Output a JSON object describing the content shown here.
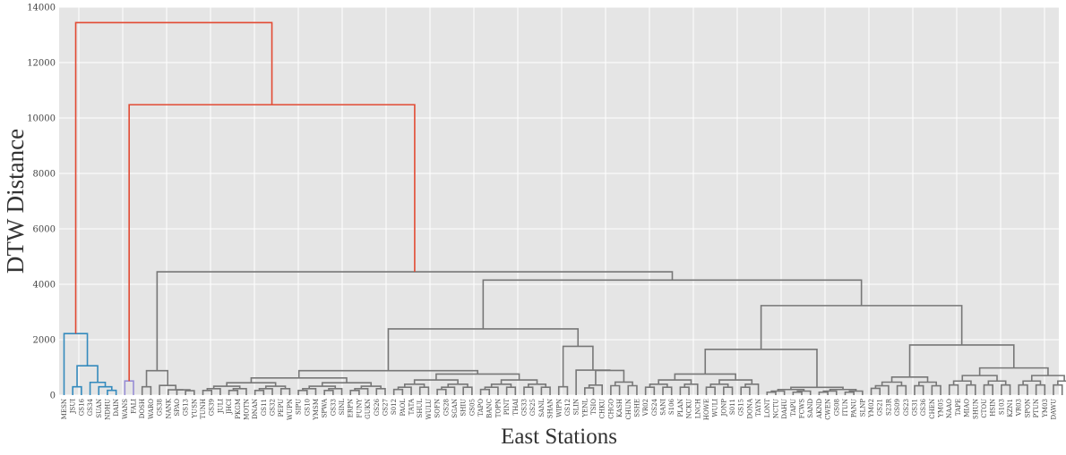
{
  "chart_data": {
    "type": "dendrogram",
    "xlabel": "East Stations",
    "ylabel": "DTW Distance",
    "ylim": [
      0,
      14000
    ],
    "yticks": [
      0,
      2000,
      4000,
      6000,
      8000,
      10000,
      12000,
      14000
    ],
    "grid": true,
    "leaves": [
      "MESN",
      "JSUI",
      "GS16",
      "GS34",
      "SUAN",
      "NDHU",
      "DAIN",
      "WANS",
      "FALI",
      "DOSH",
      "WARO",
      "GS38",
      "NANK",
      "SPAO",
      "GS13",
      "YUSN",
      "TUNH",
      "GS39",
      "JULI",
      "JHCI",
      "PKGM",
      "MOTN",
      "DNAN",
      "GS11",
      "GS32",
      "PEPU",
      "WUPN",
      "SIPU",
      "GS10",
      "YMSM",
      "SPWA",
      "GS33",
      "SINL",
      "ERPN",
      "FUNY",
      "GUKN",
      "GS26",
      "GS27",
      "S012",
      "PAOL",
      "TATA",
      "SHUL",
      "WULU",
      "SOFN",
      "GS28",
      "SGAN",
      "SHIU",
      "GS05",
      "TAPO",
      "BANC",
      "TOPN",
      "PINT",
      "THAI",
      "GS33",
      "GS25",
      "SANL",
      "SHAN",
      "WIPN",
      "GS12",
      "SLIN",
      "YENL",
      "TSIO",
      "CHKU",
      "CHGO",
      "KASH",
      "CHUN",
      "SSHE",
      "VR02",
      "GS24",
      "SANI",
      "S106",
      "PLAN",
      "NCKU",
      "LNCH",
      "HOWE",
      "WULI",
      "JONP",
      "S011",
      "GS15",
      "DONA",
      "TAYN",
      "LONT",
      "NCTU",
      "DAHU",
      "TAPU",
      "FCWS",
      "SAND",
      "AKND",
      "CWEN",
      "GS08",
      "ITUN",
      "PANU",
      "SLNP",
      "YM02",
      "GS21",
      "S23R",
      "GS09",
      "GS23",
      "GS31",
      "GS36",
      "CHEN",
      "YM05",
      "NAAO",
      "TAPE",
      "MIAO",
      "SHUN",
      "CTOU",
      "HSIN",
      "S103",
      "KZN1",
      "VR03",
      "SPON",
      "PTUN",
      "YM03",
      "DAWU"
    ],
    "colors": {
      "red": "#e24a33",
      "blue": "#348abd",
      "purple": "#988ed5",
      "gray": "#777777"
    }
  }
}
